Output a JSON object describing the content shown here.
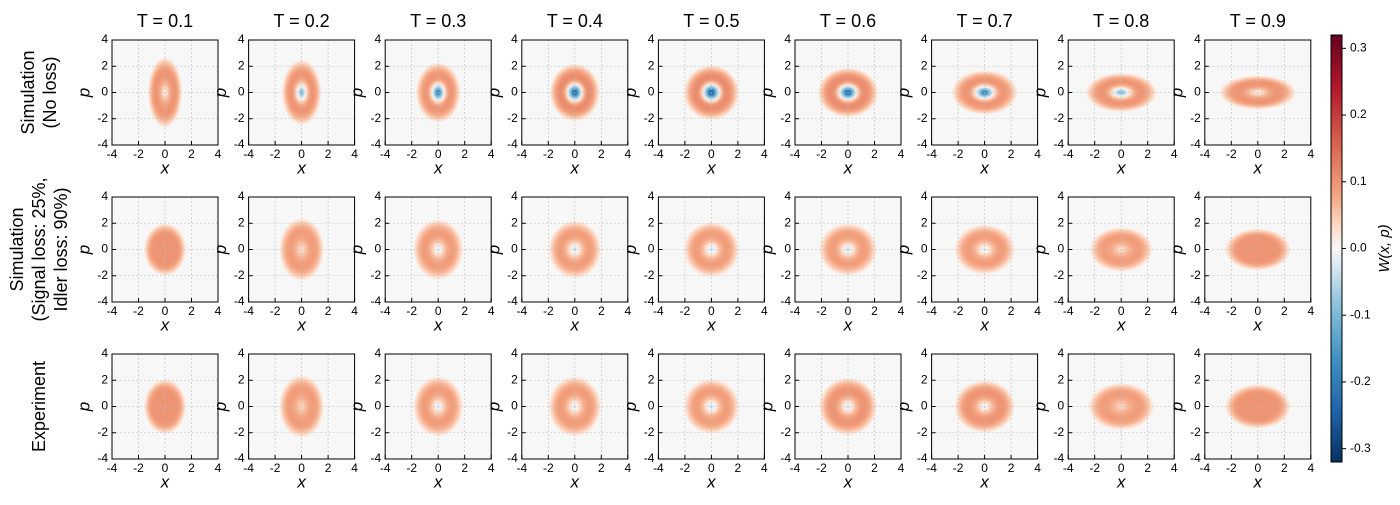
{
  "chart_data": {
    "type": "heatmap-grid",
    "column_titles": [
      "T = 0.1",
      "T = 0.2",
      "T = 0.3",
      "T = 0.4",
      "T = 0.5",
      "T = 0.6",
      "T = 0.7",
      "T = 0.8",
      "T = 0.9"
    ],
    "row_titles": [
      [
        "Simulation",
        "(No loss)"
      ],
      [
        "Simulation",
        "(Signal loss: 25%,",
        "Idler loss: 90%)"
      ],
      [
        "Experiment"
      ]
    ],
    "xlabel": "x",
    "ylabel": "p",
    "xlim": [
      -4,
      4
    ],
    "ylim": [
      -4,
      4
    ],
    "xticks": [
      -4,
      -2,
      0,
      2,
      4
    ],
    "yticks": [
      -4,
      -2,
      0,
      2,
      4
    ],
    "grid": true,
    "colorbar": {
      "label": "W(x, p)",
      "lim": [
        -0.32,
        0.32
      ],
      "ticks": [
        -0.3,
        -0.2,
        -0.1,
        {
          "value": 0,
          "label": "0.0"
        },
        0.1,
        0.2,
        0.3
      ]
    },
    "panels": [
      {
        "center": [
          0.0,
          -0.12,
          -0.22,
          -0.28,
          -0.3,
          -0.28,
          -0.22,
          -0.12,
          0.0
        ],
        "peak": [
          0.1,
          0.1,
          0.1,
          0.11,
          0.11,
          0.11,
          0.1,
          0.1,
          0.1
        ],
        "x_extent": [
          1.3,
          1.5,
          1.7,
          1.9,
          2.1,
          2.3,
          2.5,
          2.7,
          2.9
        ],
        "p_extent": [
          2.7,
          2.5,
          2.3,
          2.2,
          2.1,
          1.9,
          1.7,
          1.5,
          1.3
        ]
      },
      {
        "center": [
          0.1,
          0.02,
          -0.03,
          -0.05,
          -0.05,
          -0.05,
          -0.03,
          0.02,
          0.1
        ],
        "peak": [
          0.1,
          0.09,
          0.09,
          0.09,
          0.09,
          0.09,
          0.09,
          0.09,
          0.1
        ],
        "x_extent": [
          1.6,
          1.7,
          1.9,
          2.0,
          2.1,
          2.2,
          2.3,
          2.4,
          2.5
        ],
        "p_extent": [
          2.0,
          2.4,
          2.3,
          2.2,
          2.1,
          2.0,
          1.9,
          1.7,
          1.6
        ]
      },
      {
        "center": [
          0.1,
          0.03,
          -0.03,
          -0.03,
          -0.05,
          -0.04,
          -0.02,
          0.03,
          0.1
        ],
        "peak": [
          0.1,
          0.09,
          0.09,
          0.09,
          0.09,
          0.1,
          0.1,
          0.09,
          0.1
        ],
        "x_extent": [
          1.6,
          1.7,
          1.9,
          2.0,
          2.1,
          2.2,
          2.3,
          2.5,
          2.5
        ],
        "p_extent": [
          2.1,
          2.4,
          2.3,
          2.3,
          2.1,
          2.2,
          2.0,
          1.8,
          1.7
        ]
      }
    ]
  }
}
